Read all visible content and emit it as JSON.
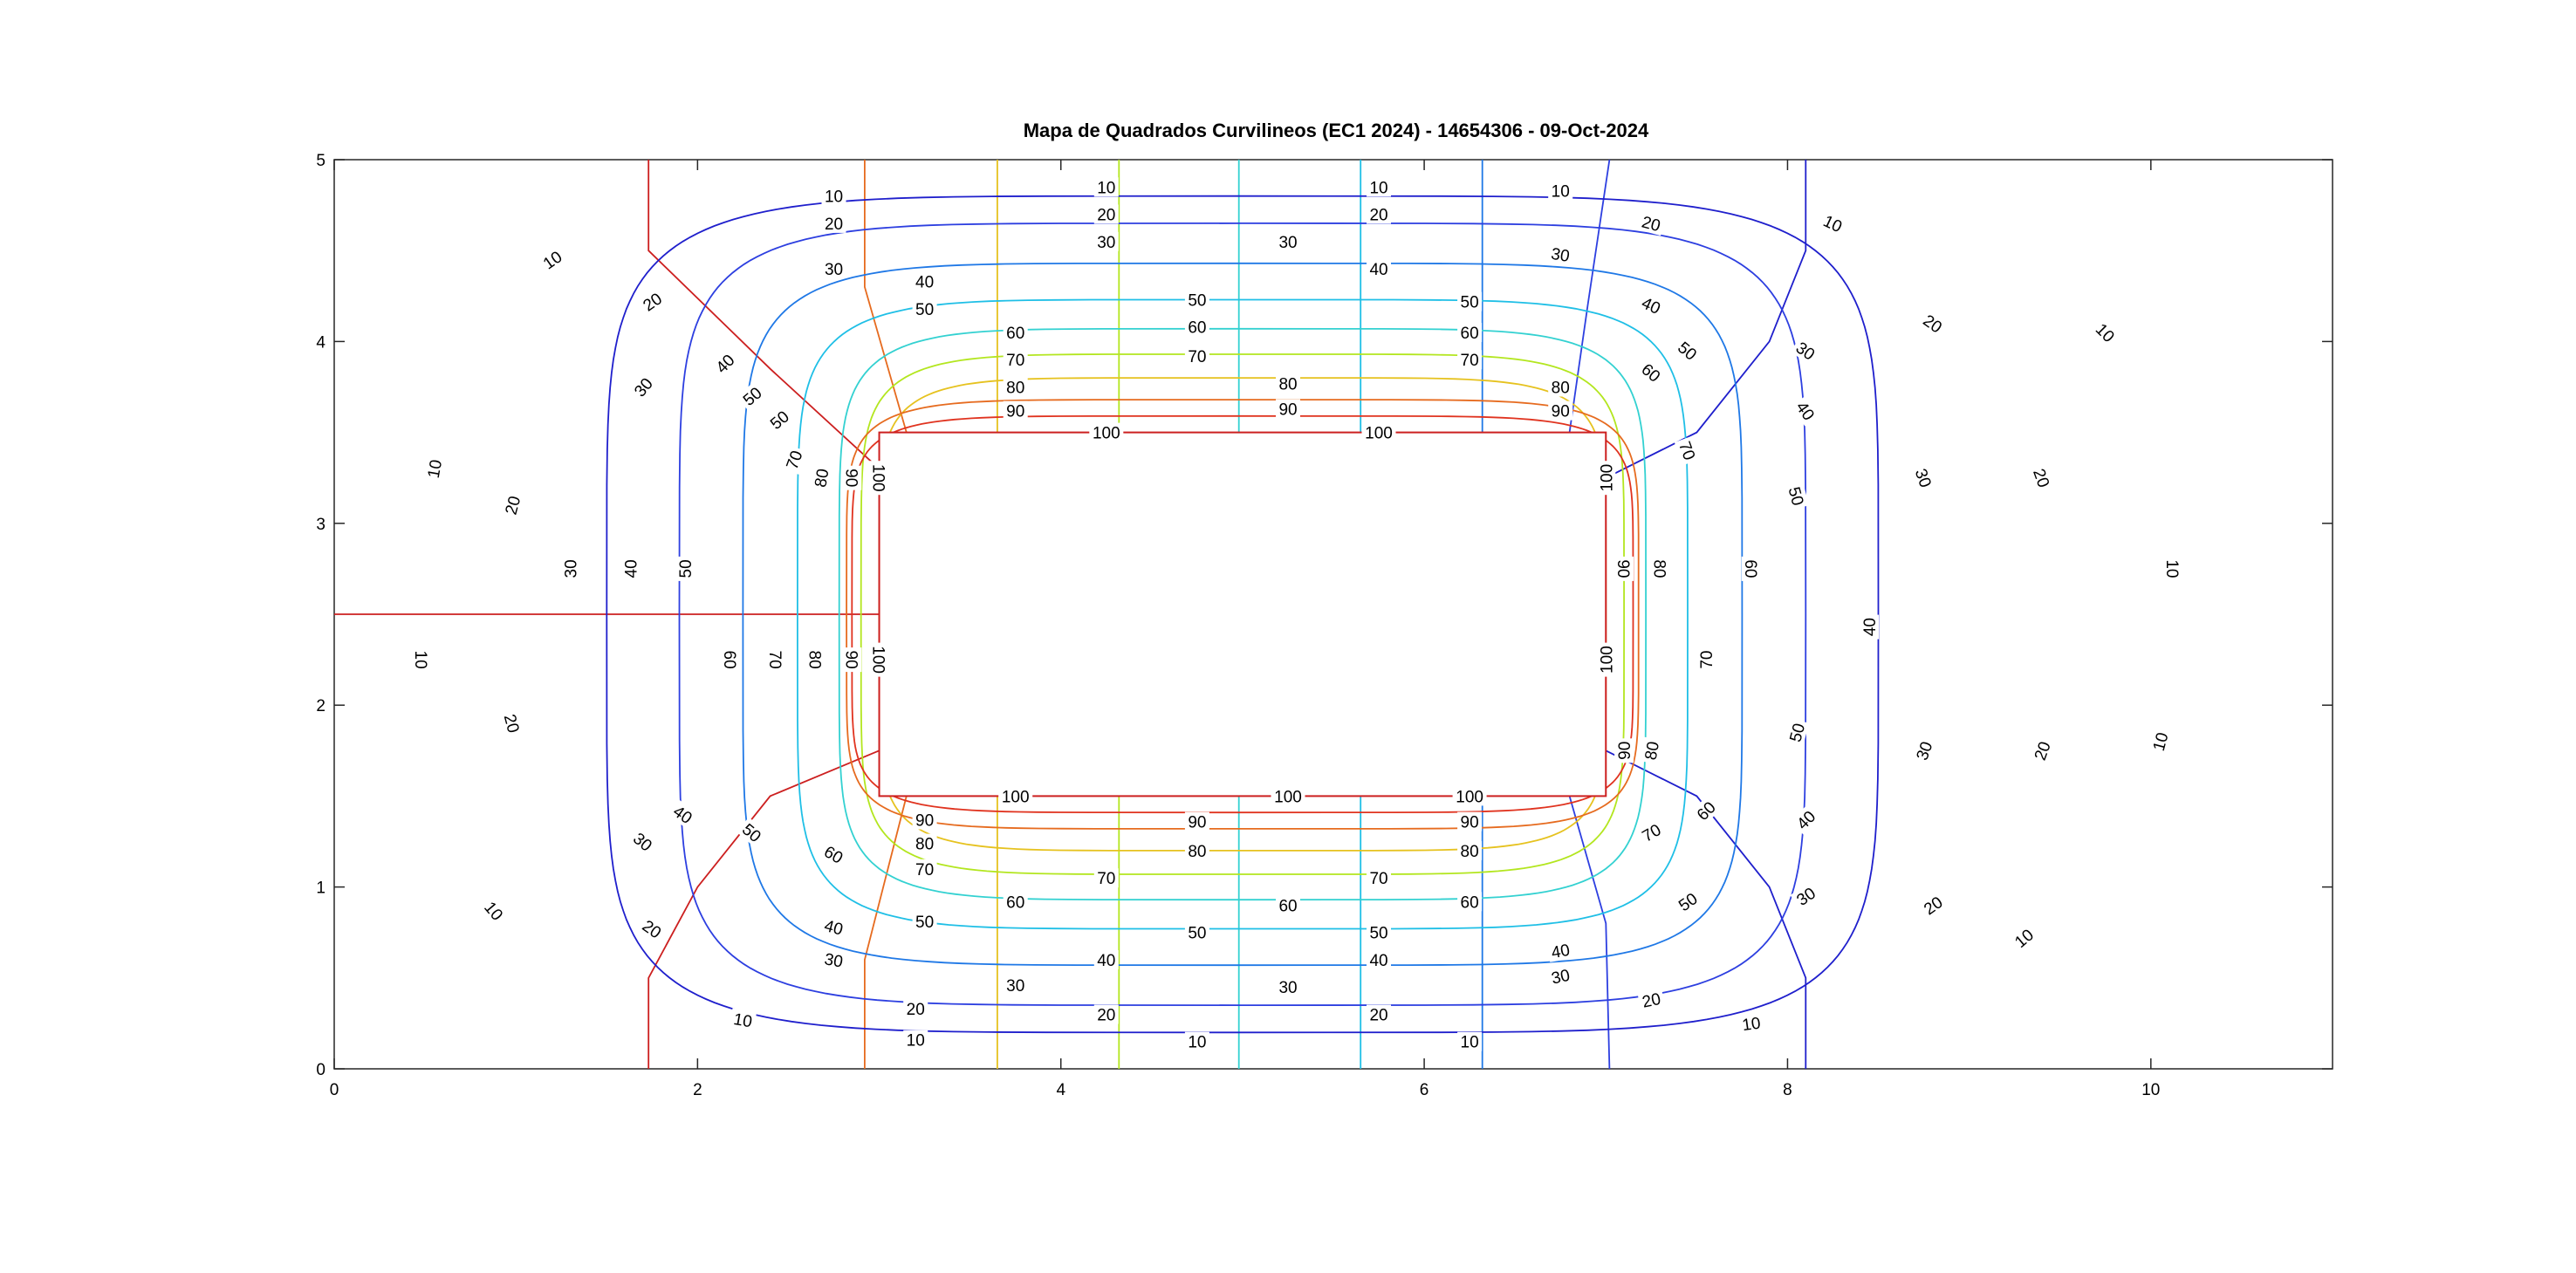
{
  "chart_data": {
    "type": "contour",
    "title": "Mapa de Quadrados Curvilineos (EC1 2024) - 14654306 - 09-Oct-2024",
    "xlabel": "",
    "ylabel": "",
    "xlim": [
      0,
      11
    ],
    "ylim": [
      0,
      5
    ],
    "x_ticks": [
      0,
      2,
      4,
      6,
      8,
      10
    ],
    "y_ticks": [
      0,
      1,
      2,
      3,
      4,
      5
    ],
    "inner_rectangle": {
      "x": [
        3,
        7
      ],
      "y": [
        1.5,
        3.5
      ]
    },
    "potential_levels": [
      10,
      20,
      30,
      40,
      50,
      60,
      70,
      80,
      90,
      100
    ],
    "level_colors": {
      "10": "#1f1fcc",
      "20": "#2d3fe0",
      "30": "#1f78e6",
      "40": "#1fbfe6",
      "50": "#33d1d1",
      "60": "#b3e61f",
      "70": "#e6c21f",
      "80": "#e66b1f",
      "90": "#e0331f",
      "100": "#cc1f1f"
    },
    "contours": [
      {
        "level": 10,
        "hx": 3.5,
        "hy": 2.3,
        "bulge": 0.38,
        "color": "#1f1fcc"
      },
      {
        "level": 20,
        "hx": 3.1,
        "hy": 2.15,
        "bulge": 0.34,
        "color": "#2d3fe0"
      },
      {
        "level": 30,
        "hx": 2.75,
        "hy": 1.93,
        "bulge": 0.32,
        "color": "#1f78e6"
      },
      {
        "level": 40,
        "hx": 2.45,
        "hy": 1.73,
        "bulge": 0.3,
        "color": "#1fbfe6"
      },
      {
        "level": 50,
        "hx": 2.22,
        "hy": 1.57,
        "bulge": 0.28,
        "color": "#33d1d1"
      },
      {
        "level": 60,
        "hx": 2.1,
        "hy": 1.43,
        "bulge": 0.26,
        "color": "#b3e61f"
      },
      {
        "level": 70,
        "hx": 2.0,
        "hy": 1.3,
        "bulge": 0.24,
        "color": "#e6c21f"
      },
      {
        "level": 80,
        "hx": 2.18,
        "hy": 1.18,
        "bulge": 0.2,
        "color": "#e66b1f"
      },
      {
        "level": 90,
        "hx": 2.15,
        "hy": 1.09,
        "bulge": 0.16,
        "color": "#e0331f"
      }
    ],
    "flux_lines": [
      {
        "color": "#cc1f1f",
        "points": [
          [
            0,
            2.5
          ],
          [
            3,
            2.5
          ]
        ]
      },
      {
        "color": "#cc1f1f",
        "points": [
          [
            1.73,
            5
          ],
          [
            1.73,
            4.5
          ],
          [
            2.4,
            3.85
          ],
          [
            3,
            3.3
          ]
        ]
      },
      {
        "color": "#cc1f1f",
        "points": [
          [
            1.73,
            0
          ],
          [
            1.73,
            0.5
          ],
          [
            2.0,
            1.0
          ],
          [
            2.4,
            1.5
          ],
          [
            3,
            1.75
          ]
        ]
      },
      {
        "color": "#e66b1f",
        "points": [
          [
            2.92,
            5
          ],
          [
            2.92,
            4.3
          ],
          [
            3.15,
            3.5
          ]
        ]
      },
      {
        "color": "#e66b1f",
        "points": [
          [
            2.92,
            0
          ],
          [
            2.92,
            0.6
          ],
          [
            3.15,
            1.5
          ]
        ]
      },
      {
        "color": "#e6c21f",
        "points": [
          [
            3.65,
            5
          ],
          [
            3.65,
            3.5
          ]
        ]
      },
      {
        "color": "#e6c21f",
        "points": [
          [
            3.65,
            0
          ],
          [
            3.65,
            1.5
          ]
        ]
      },
      {
        "color": "#b3e61f",
        "points": [
          [
            4.32,
            5
          ],
          [
            4.32,
            3.5
          ]
        ]
      },
      {
        "color": "#b3e61f",
        "points": [
          [
            4.32,
            0
          ],
          [
            4.32,
            1.5
          ]
        ]
      },
      {
        "color": "#33d1d1",
        "points": [
          [
            4.98,
            5
          ],
          [
            4.98,
            3.5
          ]
        ]
      },
      {
        "color": "#33d1d1",
        "points": [
          [
            4.98,
            0
          ],
          [
            4.98,
            1.5
          ]
        ]
      },
      {
        "color": "#1fbfe6",
        "points": [
          [
            5.65,
            5
          ],
          [
            5.65,
            3.5
          ]
        ]
      },
      {
        "color": "#1fbfe6",
        "points": [
          [
            5.65,
            0
          ],
          [
            5.65,
            1.5
          ]
        ]
      },
      {
        "color": "#1f78e6",
        "points": [
          [
            6.32,
            5
          ],
          [
            6.32,
            3.5
          ]
        ]
      },
      {
        "color": "#1f78e6",
        "points": [
          [
            6.32,
            0
          ],
          [
            6.32,
            1.5
          ]
        ]
      },
      {
        "color": "#2d3fe0",
        "points": [
          [
            7.02,
            5
          ],
          [
            6.9,
            4.2
          ],
          [
            6.8,
            3.5
          ]
        ]
      },
      {
        "color": "#2d3fe0",
        "points": [
          [
            7.02,
            0
          ],
          [
            7.0,
            0.8
          ],
          [
            6.8,
            1.5
          ]
        ]
      },
      {
        "color": "#1f1fcc",
        "points": [
          [
            8.1,
            5
          ],
          [
            8.1,
            4.5
          ],
          [
            7.9,
            4.0
          ],
          [
            7.5,
            3.5
          ],
          [
            7,
            3.25
          ]
        ]
      },
      {
        "color": "#1f1fcc",
        "points": [
          [
            8.1,
            0
          ],
          [
            8.1,
            0.5
          ],
          [
            7.9,
            1.0
          ],
          [
            7.5,
            1.5
          ],
          [
            7,
            1.75
          ]
        ]
      }
    ],
    "labels": [
      {
        "text": "10",
        "x": 2.75,
        "y": 4.8,
        "r": 0
      },
      {
        "text": "10",
        "x": 4.25,
        "y": 4.85,
        "r": 0
      },
      {
        "text": "10",
        "x": 5.75,
        "y": 4.85,
        "r": 0
      },
      {
        "text": "10",
        "x": 6.75,
        "y": 4.83,
        "r": 0
      },
      {
        "text": "10",
        "x": 8.25,
        "y": 4.65,
        "r": 25
      },
      {
        "text": "10",
        "x": 9.75,
        "y": 4.05,
        "r": 45
      },
      {
        "text": "10",
        "x": 10.12,
        "y": 2.75,
        "r": 90
      },
      {
        "text": "10",
        "x": 10.05,
        "y": 1.8,
        "r": -75
      },
      {
        "text": "10",
        "x": 9.3,
        "y": 0.72,
        "r": -40
      },
      {
        "text": "10",
        "x": 7.8,
        "y": 0.25,
        "r": -8
      },
      {
        "text": "10",
        "x": 6.25,
        "y": 0.15,
        "r": 0
      },
      {
        "text": "10",
        "x": 4.75,
        "y": 0.15,
        "r": 0
      },
      {
        "text": "10",
        "x": 3.2,
        "y": 0.16,
        "r": 0
      },
      {
        "text": "10",
        "x": 2.25,
        "y": 0.27,
        "r": 10
      },
      {
        "text": "10",
        "x": 0.88,
        "y": 0.87,
        "r": 50
      },
      {
        "text": "10",
        "x": 0.48,
        "y": 2.25,
        "r": 90
      },
      {
        "text": "10",
        "x": 0.55,
        "y": 3.3,
        "r": -80
      },
      {
        "text": "10",
        "x": 1.2,
        "y": 4.45,
        "r": -35
      },
      {
        "text": "20",
        "x": 2.75,
        "y": 4.65,
        "r": 0
      },
      {
        "text": "20",
        "x": 4.25,
        "y": 4.7,
        "r": 0
      },
      {
        "text": "20",
        "x": 5.75,
        "y": 4.7,
        "r": 0
      },
      {
        "text": "20",
        "x": 7.25,
        "y": 4.65,
        "r": 15
      },
      {
        "text": "20",
        "x": 8.8,
        "y": 4.1,
        "r": 35
      },
      {
        "text": "20",
        "x": 9.4,
        "y": 3.25,
        "r": 70
      },
      {
        "text": "20",
        "x": 9.4,
        "y": 1.75,
        "r": -70
      },
      {
        "text": "20",
        "x": 8.8,
        "y": 0.9,
        "r": -35
      },
      {
        "text": "20",
        "x": 7.25,
        "y": 0.38,
        "r": -12
      },
      {
        "text": "20",
        "x": 5.75,
        "y": 0.3,
        "r": 0
      },
      {
        "text": "20",
        "x": 4.25,
        "y": 0.3,
        "r": 0
      },
      {
        "text": "20",
        "x": 3.2,
        "y": 0.33,
        "r": 0
      },
      {
        "text": "20",
        "x": 1.75,
        "y": 0.77,
        "r": 35
      },
      {
        "text": "20",
        "x": 0.98,
        "y": 1.9,
        "r": 75
      },
      {
        "text": "20",
        "x": 0.98,
        "y": 3.1,
        "r": -75
      },
      {
        "text": "20",
        "x": 1.75,
        "y": 4.22,
        "r": -35
      },
      {
        "text": "30",
        "x": 2.75,
        "y": 4.4,
        "r": 0
      },
      {
        "text": "30",
        "x": 4.25,
        "y": 4.55,
        "r": 0
      },
      {
        "text": "30",
        "x": 5.25,
        "y": 4.55,
        "r": 0
      },
      {
        "text": "30",
        "x": 6.75,
        "y": 4.48,
        "r": 10
      },
      {
        "text": "30",
        "x": 8.1,
        "y": 3.95,
        "r": 35
      },
      {
        "text": "30",
        "x": 8.75,
        "y": 3.25,
        "r": 70
      },
      {
        "text": "30",
        "x": 8.75,
        "y": 1.75,
        "r": -70
      },
      {
        "text": "30",
        "x": 8.1,
        "y": 0.95,
        "r": -35
      },
      {
        "text": "30",
        "x": 6.75,
        "y": 0.51,
        "r": -12
      },
      {
        "text": "30",
        "x": 5.25,
        "y": 0.45,
        "r": 0
      },
      {
        "text": "30",
        "x": 3.75,
        "y": 0.46,
        "r": 0
      },
      {
        "text": "30",
        "x": 2.75,
        "y": 0.6,
        "r": 10
      },
      {
        "text": "30",
        "x": 1.7,
        "y": 1.25,
        "r": 40
      },
      {
        "text": "30",
        "x": 1.3,
        "y": 2.75,
        "r": -90
      },
      {
        "text": "30",
        "x": 1.7,
        "y": 3.75,
        "r": -50
      },
      {
        "text": "40",
        "x": 3.25,
        "y": 4.33,
        "r": 0
      },
      {
        "text": "40",
        "x": 5.75,
        "y": 4.4,
        "r": 0
      },
      {
        "text": "40",
        "x": 7.25,
        "y": 4.2,
        "r": 25
      },
      {
        "text": "40",
        "x": 8.1,
        "y": 3.62,
        "r": 55
      },
      {
        "text": "40",
        "x": 8.45,
        "y": 2.43,
        "r": -90
      },
      {
        "text": "40",
        "x": 8.1,
        "y": 1.37,
        "r": -45
      },
      {
        "text": "40",
        "x": 6.75,
        "y": 0.65,
        "r": -10
      },
      {
        "text": "40",
        "x": 5.75,
        "y": 0.6,
        "r": 0
      },
      {
        "text": "40",
        "x": 4.25,
        "y": 0.6,
        "r": 0
      },
      {
        "text": "40",
        "x": 2.75,
        "y": 0.78,
        "r": 15
      },
      {
        "text": "40",
        "x": 1.92,
        "y": 1.4,
        "r": 35
      },
      {
        "text": "40",
        "x": 1.63,
        "y": 2.75,
        "r": -90
      },
      {
        "text": "40",
        "x": 2.15,
        "y": 3.88,
        "r": -45
      },
      {
        "text": "50",
        "x": 3.25,
        "y": 4.18,
        "r": 0
      },
      {
        "text": "50",
        "x": 4.75,
        "y": 4.23,
        "r": 0
      },
      {
        "text": "50",
        "x": 6.25,
        "y": 4.22,
        "r": 0
      },
      {
        "text": "50",
        "x": 7.45,
        "y": 3.95,
        "r": 40
      },
      {
        "text": "50",
        "x": 8.05,
        "y": 3.15,
        "r": 75
      },
      {
        "text": "50",
        "x": 8.05,
        "y": 1.85,
        "r": -75
      },
      {
        "text": "50",
        "x": 7.45,
        "y": 0.92,
        "r": -35
      },
      {
        "text": "50",
        "x": 5.75,
        "y": 0.75,
        "r": 0
      },
      {
        "text": "50",
        "x": 4.75,
        "y": 0.75,
        "r": 0
      },
      {
        "text": "50",
        "x": 3.25,
        "y": 0.81,
        "r": 0
      },
      {
        "text": "50",
        "x": 2.3,
        "y": 1.3,
        "r": 40
      },
      {
        "text": "50",
        "x": 1.93,
        "y": 2.75,
        "r": -90
      },
      {
        "text": "50",
        "x": 2.3,
        "y": 3.7,
        "r": -40
      },
      {
        "text": "50",
        "x": 2.45,
        "y": 3.57,
        "r": -40
      },
      {
        "text": "60",
        "x": 3.75,
        "y": 4.05,
        "r": 0
      },
      {
        "text": "60",
        "x": 4.75,
        "y": 4.08,
        "r": 0
      },
      {
        "text": "60",
        "x": 6.25,
        "y": 4.05,
        "r": 0
      },
      {
        "text": "60",
        "x": 7.25,
        "y": 3.83,
        "r": 40
      },
      {
        "text": "60",
        "x": 7.8,
        "y": 2.75,
        "r": 90
      },
      {
        "text": "60",
        "x": 7.55,
        "y": 1.42,
        "r": -45
      },
      {
        "text": "60",
        "x": 6.25,
        "y": 0.92,
        "r": 0
      },
      {
        "text": "60",
        "x": 5.25,
        "y": 0.9,
        "r": 0
      },
      {
        "text": "60",
        "x": 3.75,
        "y": 0.92,
        "r": 0
      },
      {
        "text": "60",
        "x": 2.75,
        "y": 1.18,
        "r": 30
      },
      {
        "text": "60",
        "x": 2.18,
        "y": 2.25,
        "r": 90
      },
      {
        "text": "70",
        "x": 3.75,
        "y": 3.9,
        "r": 0
      },
      {
        "text": "70",
        "x": 4.75,
        "y": 3.92,
        "r": 0
      },
      {
        "text": "70",
        "x": 6.25,
        "y": 3.9,
        "r": 0
      },
      {
        "text": "70",
        "x": 7.45,
        "y": 3.4,
        "r": 70
      },
      {
        "text": "70",
        "x": 7.55,
        "y": 2.25,
        "r": -90
      },
      {
        "text": "70",
        "x": 7.25,
        "y": 1.3,
        "r": -30
      },
      {
        "text": "70",
        "x": 5.75,
        "y": 1.05,
        "r": 0
      },
      {
        "text": "70",
        "x": 4.25,
        "y": 1.05,
        "r": 0
      },
      {
        "text": "70",
        "x": 3.25,
        "y": 1.1,
        "r": 0
      },
      {
        "text": "70",
        "x": 2.43,
        "y": 2.25,
        "r": 90
      },
      {
        "text": "70",
        "x": 2.53,
        "y": 3.35,
        "r": -70
      },
      {
        "text": "80",
        "x": 3.75,
        "y": 3.75,
        "r": 0
      },
      {
        "text": "80",
        "x": 5.25,
        "y": 3.77,
        "r": 0
      },
      {
        "text": "80",
        "x": 6.75,
        "y": 3.75,
        "r": 0
      },
      {
        "text": "80",
        "x": 7.3,
        "y": 2.75,
        "r": 90
      },
      {
        "text": "80",
        "x": 7.25,
        "y": 1.75,
        "r": -80
      },
      {
        "text": "80",
        "x": 6.25,
        "y": 1.2,
        "r": 0
      },
      {
        "text": "80",
        "x": 4.75,
        "y": 1.2,
        "r": 0
      },
      {
        "text": "80",
        "x": 3.25,
        "y": 1.24,
        "r": 0
      },
      {
        "text": "80",
        "x": 2.65,
        "y": 2.25,
        "r": 90
      },
      {
        "text": "80",
        "x": 2.68,
        "y": 3.25,
        "r": -80
      },
      {
        "text": "90",
        "x": 3.75,
        "y": 3.62,
        "r": 0
      },
      {
        "text": "90",
        "x": 5.25,
        "y": 3.63,
        "r": 0
      },
      {
        "text": "90",
        "x": 6.75,
        "y": 3.62,
        "r": 0
      },
      {
        "text": "90",
        "x": 7.1,
        "y": 2.75,
        "r": 90
      },
      {
        "text": "90",
        "x": 7.1,
        "y": 1.75,
        "r": -90
      },
      {
        "text": "90",
        "x": 6.25,
        "y": 1.36,
        "r": 0
      },
      {
        "text": "90",
        "x": 4.75,
        "y": 1.36,
        "r": 0
      },
      {
        "text": "90",
        "x": 3.25,
        "y": 1.37,
        "r": 0
      },
      {
        "text": "90",
        "x": 2.85,
        "y": 2.25,
        "r": 90
      },
      {
        "text": "90",
        "x": 2.85,
        "y": 3.25,
        "r": 90
      },
      {
        "text": "100",
        "x": 4.25,
        "y": 3.5,
        "r": 0
      },
      {
        "text": "100",
        "x": 5.75,
        "y": 3.5,
        "r": 0
      },
      {
        "text": "100",
        "x": 7,
        "y": 3.25,
        "r": -90
      },
      {
        "text": "100",
        "x": 7,
        "y": 2.25,
        "r": -90
      },
      {
        "text": "100",
        "x": 6.25,
        "y": 1.5,
        "r": 0
      },
      {
        "text": "100",
        "x": 5.25,
        "y": 1.5,
        "r": 0
      },
      {
        "text": "100",
        "x": 3.75,
        "y": 1.5,
        "r": 0
      },
      {
        "text": "100",
        "x": 3,
        "y": 2.25,
        "r": 90
      },
      {
        "text": "100",
        "x": 3,
        "y": 3.25,
        "r": 90
      }
    ]
  }
}
